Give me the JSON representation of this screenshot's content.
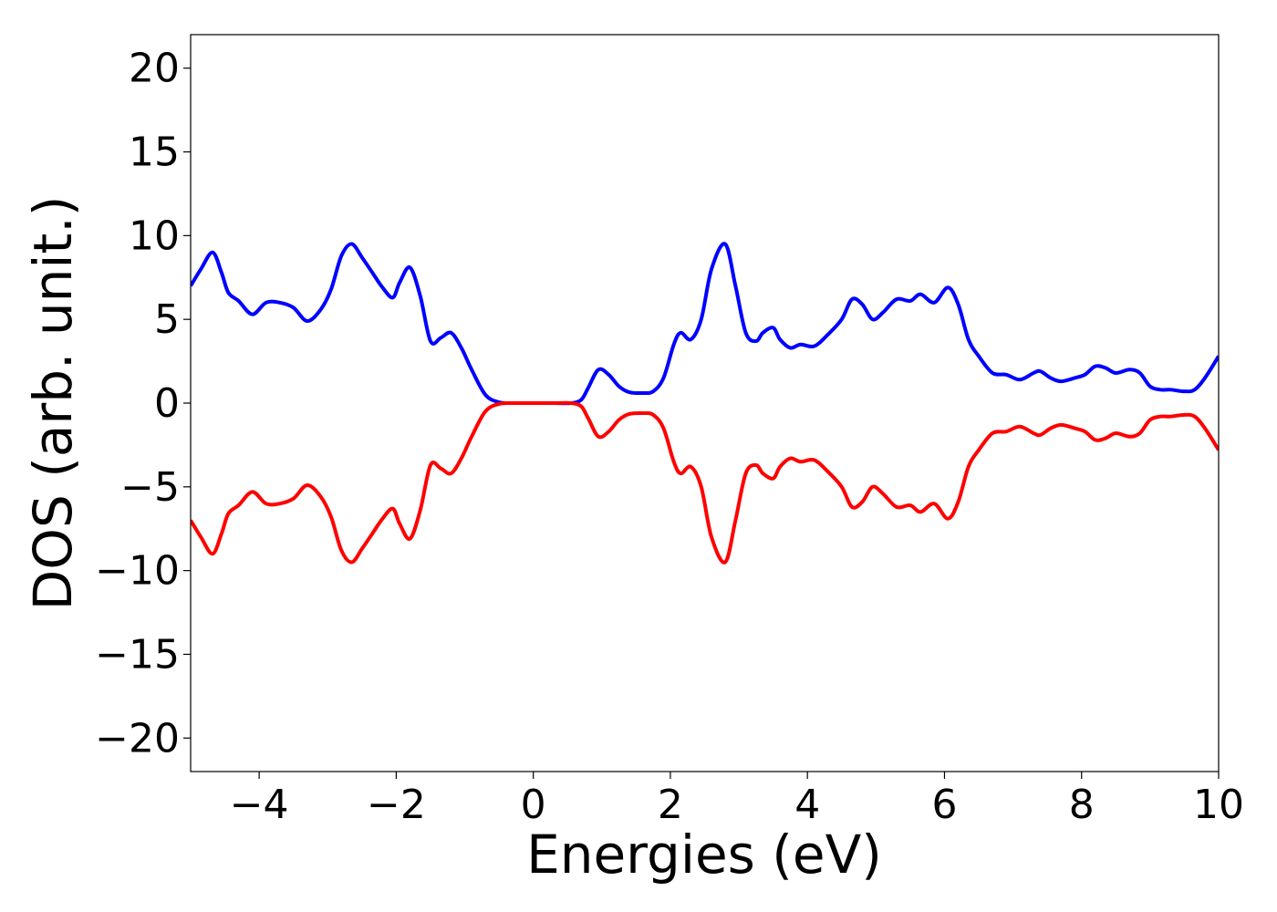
{
  "chart_data": {
    "type": "line",
    "title": "",
    "xlabel": "Energies (eV)",
    "ylabel": "DOS (arb. unit.)",
    "xlim": [
      -5,
      10
    ],
    "ylim": [
      -22,
      22
    ],
    "x_ticks": [
      -4,
      -2,
      0,
      2,
      4,
      6,
      8,
      10
    ],
    "x_tick_labels": [
      "−4",
      "−2",
      "0",
      "2",
      "4",
      "6",
      "8",
      "10"
    ],
    "y_ticks": [
      -20,
      -15,
      -10,
      -5,
      0,
      5,
      10,
      15,
      20
    ],
    "y_tick_labels": [
      "−20",
      "−15",
      "−10",
      "−5",
      "0",
      "5",
      "10",
      "15",
      "20"
    ],
    "grid": false,
    "legend": "none",
    "series": [
      {
        "color": "#0000ff",
        "x": [
          -5.0,
          -4.85,
          -4.68,
          -4.55,
          -4.45,
          -4.3,
          -4.1,
          -3.9,
          -3.7,
          -3.5,
          -3.3,
          -3.1,
          -2.95,
          -2.8,
          -2.65,
          -2.5,
          -2.35,
          -2.2,
          -2.05,
          -1.95,
          -1.8,
          -1.65,
          -1.5,
          -1.35,
          -1.2,
          -1.05,
          -0.9,
          -0.7,
          -0.5,
          -0.3,
          0.0,
          0.3,
          0.55,
          0.7,
          0.8,
          0.95,
          1.1,
          1.25,
          1.4,
          1.6,
          1.75,
          1.9,
          2.05,
          2.15,
          2.3,
          2.45,
          2.6,
          2.8,
          2.95,
          3.1,
          3.25,
          3.35,
          3.5,
          3.6,
          3.75,
          3.9,
          4.1,
          4.3,
          4.5,
          4.65,
          4.8,
          4.95,
          5.1,
          5.3,
          5.5,
          5.65,
          5.85,
          6.05,
          6.2,
          6.35,
          6.5,
          6.7,
          6.9,
          7.1,
          7.3,
          7.4,
          7.55,
          7.7,
          7.9,
          8.05,
          8.2,
          8.35,
          8.5,
          8.7,
          8.85,
          9.0,
          9.15,
          9.3,
          9.5,
          9.65,
          9.8,
          10.0
        ],
        "y": [
          7.0,
          8.0,
          9.0,
          7.8,
          6.6,
          6.1,
          5.3,
          6.0,
          6.0,
          5.7,
          4.9,
          5.6,
          6.8,
          8.8,
          9.5,
          8.7,
          7.8,
          6.9,
          6.3,
          7.2,
          8.1,
          6.4,
          3.7,
          3.9,
          4.2,
          3.3,
          2.0,
          0.5,
          0.05,
          0.0,
          0.0,
          0.0,
          0.0,
          0.2,
          0.9,
          2.0,
          1.7,
          1.0,
          0.65,
          0.6,
          0.7,
          1.5,
          3.5,
          4.2,
          3.8,
          5.0,
          8.0,
          9.5,
          7.0,
          4.2,
          3.7,
          4.2,
          4.5,
          3.8,
          3.3,
          3.5,
          3.4,
          4.1,
          5.0,
          6.2,
          5.9,
          5.0,
          5.4,
          6.2,
          6.1,
          6.5,
          6.0,
          6.9,
          5.9,
          3.8,
          2.8,
          1.8,
          1.7,
          1.4,
          1.8,
          1.9,
          1.5,
          1.3,
          1.5,
          1.7,
          2.2,
          2.1,
          1.8,
          2.0,
          1.8,
          1.0,
          0.8,
          0.8,
          0.7,
          0.8,
          1.5,
          2.8
        ]
      },
      {
        "color": "#ff0000",
        "x": [
          -5.0,
          -4.85,
          -4.68,
          -4.55,
          -4.45,
          -4.3,
          -4.1,
          -3.9,
          -3.7,
          -3.5,
          -3.3,
          -3.1,
          -2.95,
          -2.8,
          -2.65,
          -2.5,
          -2.35,
          -2.2,
          -2.05,
          -1.95,
          -1.8,
          -1.65,
          -1.5,
          -1.35,
          -1.2,
          -1.05,
          -0.9,
          -0.7,
          -0.5,
          -0.3,
          0.0,
          0.3,
          0.55,
          0.7,
          0.8,
          0.95,
          1.1,
          1.25,
          1.4,
          1.6,
          1.75,
          1.9,
          2.05,
          2.15,
          2.3,
          2.45,
          2.6,
          2.8,
          2.95,
          3.1,
          3.25,
          3.35,
          3.5,
          3.6,
          3.75,
          3.9,
          4.1,
          4.3,
          4.5,
          4.65,
          4.8,
          4.95,
          5.1,
          5.3,
          5.5,
          5.65,
          5.85,
          6.05,
          6.2,
          6.35,
          6.5,
          6.7,
          6.9,
          7.1,
          7.3,
          7.4,
          7.55,
          7.7,
          7.9,
          8.05,
          8.2,
          8.35,
          8.5,
          8.7,
          8.85,
          9.0,
          9.15,
          9.3,
          9.5,
          9.65,
          9.8,
          10.0
        ],
        "y": [
          -7.0,
          -8.0,
          -9.0,
          -7.8,
          -6.6,
          -6.1,
          -5.3,
          -6.0,
          -6.0,
          -5.7,
          -4.9,
          -5.6,
          -6.8,
          -8.8,
          -9.5,
          -8.7,
          -7.8,
          -6.9,
          -6.3,
          -7.2,
          -8.1,
          -6.4,
          -3.7,
          -3.9,
          -4.2,
          -3.3,
          -2.0,
          -0.5,
          -0.05,
          0.0,
          0.0,
          0.0,
          0.0,
          -0.2,
          -0.9,
          -2.0,
          -1.7,
          -1.0,
          -0.65,
          -0.6,
          -0.7,
          -1.5,
          -3.5,
          -4.2,
          -3.8,
          -5.0,
          -8.0,
          -9.5,
          -7.0,
          -4.2,
          -3.7,
          -4.2,
          -4.5,
          -3.8,
          -3.3,
          -3.5,
          -3.4,
          -4.1,
          -5.0,
          -6.2,
          -5.9,
          -5.0,
          -5.4,
          -6.2,
          -6.1,
          -6.5,
          -6.0,
          -6.9,
          -5.9,
          -3.8,
          -2.8,
          -1.8,
          -1.7,
          -1.4,
          -1.8,
          -1.9,
          -1.5,
          -1.3,
          -1.5,
          -1.7,
          -2.2,
          -2.1,
          -1.8,
          -2.0,
          -1.8,
          -1.0,
          -0.8,
          -0.8,
          -0.7,
          -0.8,
          -1.5,
          -2.8
        ]
      }
    ]
  }
}
